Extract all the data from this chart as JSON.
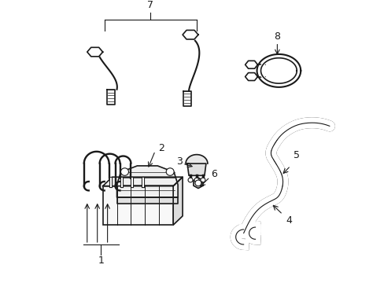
{
  "background_color": "#ffffff",
  "line_color": "#1a1a1a",
  "lw": 1.2,
  "tlw": 0.7,
  "fs": 9,
  "figsize": [
    4.89,
    3.6
  ],
  "dpi": 100
}
